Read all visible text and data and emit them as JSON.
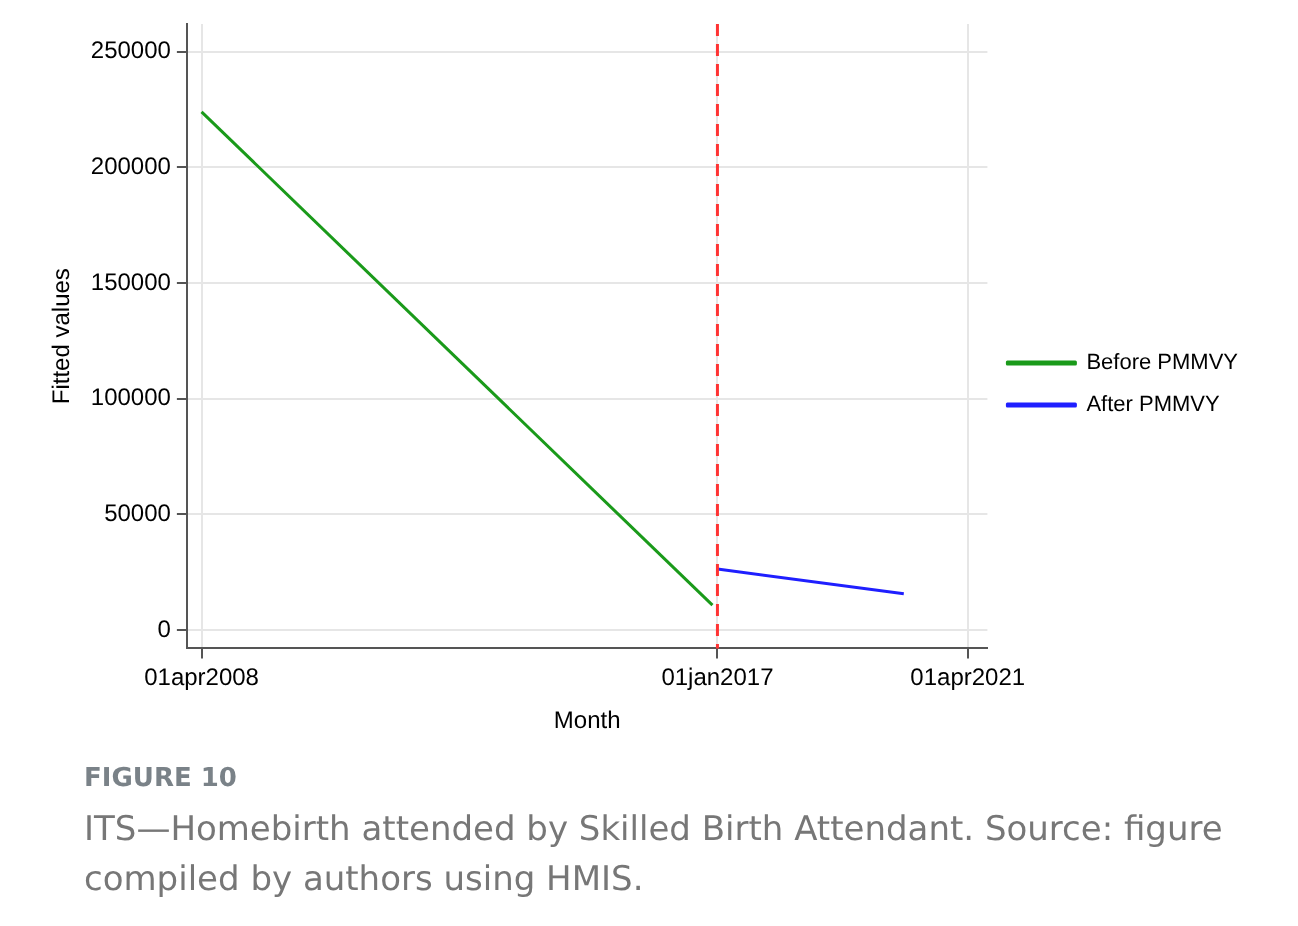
{
  "chart_data": {
    "type": "line",
    "xlabel": "Month",
    "ylabel": "Fitted values",
    "xlim": [
      "2008-01-01",
      "2021-08-01"
    ],
    "xticks": [
      {
        "value": "2008-04-01",
        "label": "01apr2008"
      },
      {
        "value": "2017-01-01",
        "label": "01jan2017"
      },
      {
        "value": "2021-04-01",
        "label": "01apr2021"
      }
    ],
    "ylim": [
      -8000,
      262000
    ],
    "yticks": [
      0,
      50000,
      100000,
      150000,
      200000,
      250000
    ],
    "grid": true,
    "legend": "right",
    "marker": "none",
    "series": [
      {
        "name": "Before PMMVY",
        "color": "#1a9a1a",
        "x": [
          "2008-04",
          "2016-12"
        ],
        "values": [
          224000,
          10700
        ]
      },
      {
        "name": "After PMMVY",
        "color": "#1f1fff",
        "x": [
          "2017-01",
          "2020-03"
        ],
        "values": [
          26300,
          15600
        ]
      }
    ],
    "ref_lines": [
      {
        "axis": "x",
        "value": "2017-01-01",
        "color": "#ff3333",
        "line_style": "dashed"
      }
    ],
    "annotations": [
      "FIGURE 10",
      "ITS—Homebirth attended by Skilled Birth Attendant. Source: figure compiled by authors using HMIS."
    ]
  }
}
